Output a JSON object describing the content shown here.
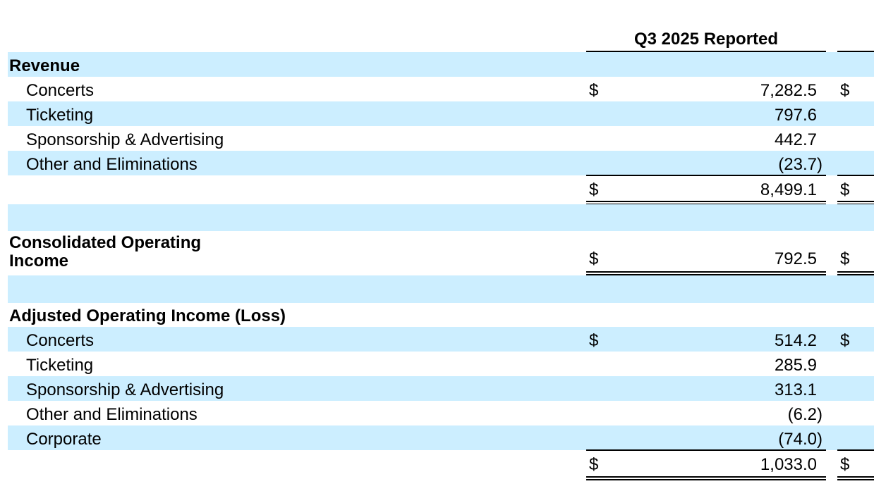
{
  "header": {
    "column_title": "Q3 2025 Reported"
  },
  "revenue": {
    "title": "Revenue",
    "rows": [
      {
        "label": "Concerts",
        "dollar": "$",
        "amount": "7,282.5",
        "dollar_right": "$"
      },
      {
        "label": "Ticketing",
        "amount": "797.6"
      },
      {
        "label": "Sponsorship & Advertising",
        "amount": "442.7"
      },
      {
        "label": "Other and Eliminations",
        "amount": "(23.7)"
      }
    ],
    "total": {
      "dollar": "$",
      "amount": "8,499.1",
      "dollar_right": "$"
    }
  },
  "consolidated": {
    "title_line1": "Consolidated Operating",
    "title_line2": "Income",
    "dollar": "$",
    "amount": "792.5",
    "dollar_right": "$"
  },
  "adjusted": {
    "title": "Adjusted Operating Income (Loss)",
    "rows": [
      {
        "label": "Concerts",
        "dollar": "$",
        "amount": "514.2",
        "dollar_right": "$"
      },
      {
        "label": "Ticketing",
        "amount": "285.9"
      },
      {
        "label": "Sponsorship & Advertising",
        "amount": "313.1"
      },
      {
        "label": "Other and Eliminations",
        "amount": "(6.2)"
      },
      {
        "label": "Corporate",
        "amount": "(74.0)"
      }
    ],
    "total": {
      "dollar": "$",
      "amount": "1,033.0",
      "dollar_right": "$"
    }
  },
  "colors": {
    "row_shade": "#cceeff"
  }
}
